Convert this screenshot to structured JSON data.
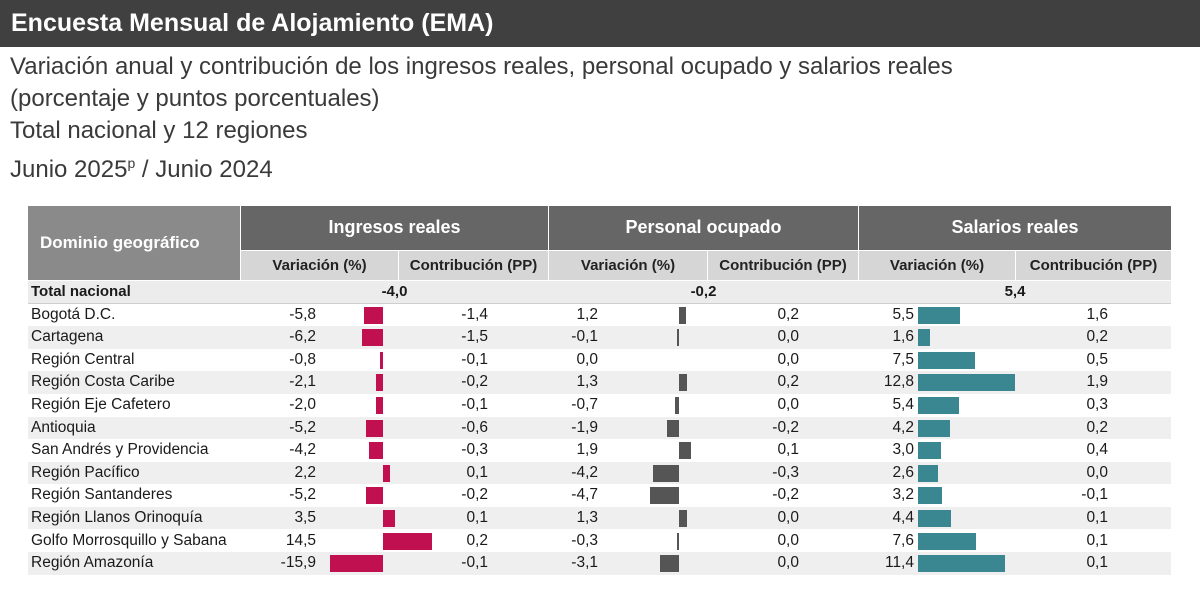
{
  "header": {
    "title": "Encuesta Mensual de Alojamiento (EMA)",
    "subtitle_line1": "Variación anual y contribución de los ingresos reales, personal ocupado y salarios reales",
    "subtitle_line2": "(porcentaje y puntos porcentuales)",
    "subtitle_line3": "Total nacional y 12 regiones",
    "subtitle_line4_a": "Junio 2025",
    "subtitle_line4_sup": "p",
    "subtitle_line4_b": " / Junio 2024"
  },
  "table": {
    "domain_header": "Dominio geográfico",
    "groups": [
      {
        "label": "Ingresos reales",
        "sub": [
          "Variación (%)",
          "Contribución (PP)"
        ]
      },
      {
        "label": "Personal ocupado",
        "sub": [
          "Variación (%)",
          "Contribución (PP)"
        ]
      },
      {
        "label": "Salarios reales",
        "sub": [
          "Variación (%)",
          "Contribución (PP)"
        ]
      }
    ],
    "total": {
      "label": "Total nacional",
      "values": [
        "-4,0",
        "-0,2",
        "5,4"
      ]
    }
  },
  "colors": {
    "ingresos_bar": "#c0104f",
    "personal_bar": "#555555",
    "salarios_bar": "#3a8691"
  },
  "chart_data": {
    "type": "bar",
    "categories": [
      "Bogotá D.C.",
      "Cartagena",
      "Región Central",
      "Región Costa Caribe",
      "Región Eje Cafetero",
      "Antioquia",
      "San Andrés y Providencia",
      "Región Pacífico",
      "Región Santanderes",
      "Región Llanos Orinoquía",
      "Golfo Morrosquillo y Sabana",
      "Región Amazonía"
    ],
    "series": [
      {
        "name": "Ingresos reales",
        "variation": [
          -5.8,
          -6.2,
          -0.8,
          -2.1,
          -2.0,
          -5.2,
          -4.2,
          2.2,
          -5.2,
          3.5,
          14.5,
          -15.9
        ],
        "contribution": [
          "-1,4",
          "-1,5",
          "-0,1",
          "-0,2",
          "-0,1",
          "-0,6",
          "-0,3",
          "0,1",
          "-0,2",
          "0,1",
          "0,2",
          "-0,1"
        ]
      },
      {
        "name": "Personal ocupado",
        "variation": [
          1.2,
          -0.1,
          0.0,
          1.3,
          -0.7,
          -1.9,
          1.9,
          -4.2,
          -4.7,
          1.3,
          -0.3,
          -3.1
        ],
        "contribution": [
          "0,2",
          "0,0",
          "0,0",
          "0,2",
          "0,0",
          "-0,2",
          "0,1",
          "-0,3",
          "-0,2",
          "0,0",
          "0,0",
          "0,0"
        ]
      },
      {
        "name": "Salarios reales",
        "variation": [
          5.5,
          1.6,
          7.5,
          12.8,
          5.4,
          4.2,
          3.0,
          2.6,
          3.2,
          4.4,
          7.6,
          11.4
        ],
        "contribution": [
          "1,6",
          "0,2",
          "0,5",
          "1,9",
          "0,3",
          "0,2",
          "0,4",
          "0,0",
          "-0,1",
          "0,1",
          "0,1",
          "0,1"
        ]
      }
    ]
  }
}
